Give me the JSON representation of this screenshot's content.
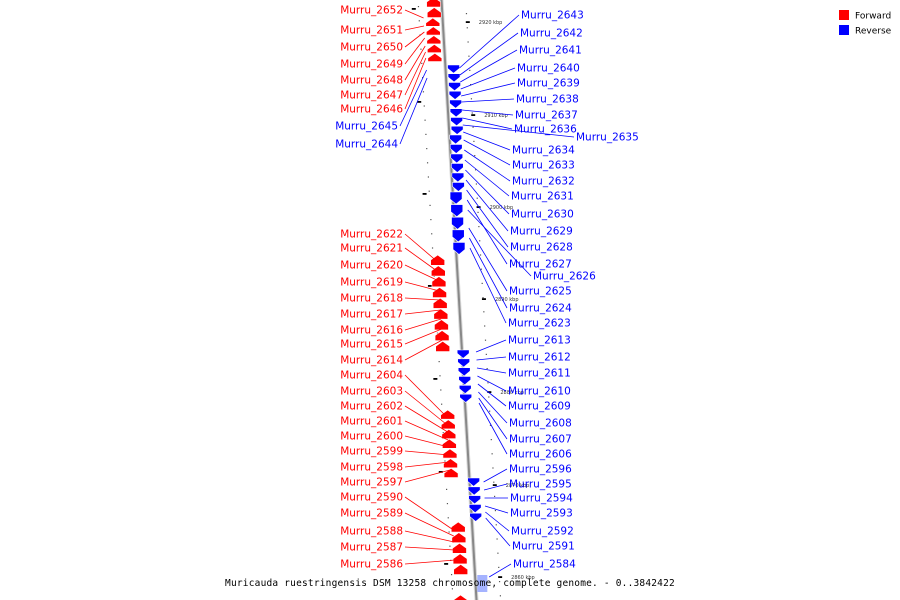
{
  "caption": "Muricauda ruestringensis DSM 13258 chromosome, complete genome. - 0..3842422",
  "legend": [
    {
      "label": "Forward",
      "color": "#ff0000"
    },
    {
      "label": "Reverse",
      "color": "#0000ff"
    }
  ],
  "colors": {
    "forward": "#ff0000",
    "reverse": "#0000ff",
    "backbone": "#888888"
  },
  "ticks": [
    {
      "label": "2920 kbp"
    },
    {
      "label": "2910 kbp"
    },
    {
      "label": "2900 kbp"
    },
    {
      "label": "2890 kbp"
    },
    {
      "label": "2880 kbp"
    },
    {
      "label": "2870 kbp"
    },
    {
      "label": "2860 kbp"
    }
  ],
  "forward_genes": [
    "Murru_2652",
    "Murru_2651",
    "Murru_2650",
    "Murru_2649",
    "Murru_2648",
    "Murru_2647",
    "Murru_2646",
    "Murru_2622",
    "Murru_2621",
    "Murru_2620",
    "Murru_2619",
    "Murru_2618",
    "Murru_2617",
    "Murru_2616",
    "Murru_2615",
    "Murru_2614",
    "Murru_2604",
    "Murru_2603",
    "Murru_2602",
    "Murru_2601",
    "Murru_2600",
    "Murru_2599",
    "Murru_2598",
    "Murru_2597",
    "Murru_2590",
    "Murru_2589",
    "Murru_2588",
    "Murru_2587",
    "Murru_2586"
  ],
  "reverse_genes_left": [
    "Murru_2645",
    "Murru_2644"
  ],
  "reverse_genes": [
    "Murru_2643",
    "Murru_2642",
    "Murru_2641",
    "Murru_2640",
    "Murru_2639",
    "Murru_2638",
    "Murru_2637",
    "Murru_2636",
    "Murru_2635",
    "Murru_2634",
    "Murru_2633",
    "Murru_2632",
    "Murru_2631",
    "Murru_2630",
    "Murru_2629",
    "Murru_2628",
    "Murru_2627",
    "Murru_2626",
    "Murru_2625",
    "Murru_2624",
    "Murru_2623",
    "Murru_2613",
    "Murru_2612",
    "Murru_2611",
    "Murru_2610",
    "Murru_2609",
    "Murru_2608",
    "Murru_2607",
    "Murru_2606",
    "Murru_2596",
    "Murru_2595",
    "Murru_2594",
    "Murru_2593",
    "Murru_2592",
    "Murru_2591",
    "Murru_2584"
  ]
}
